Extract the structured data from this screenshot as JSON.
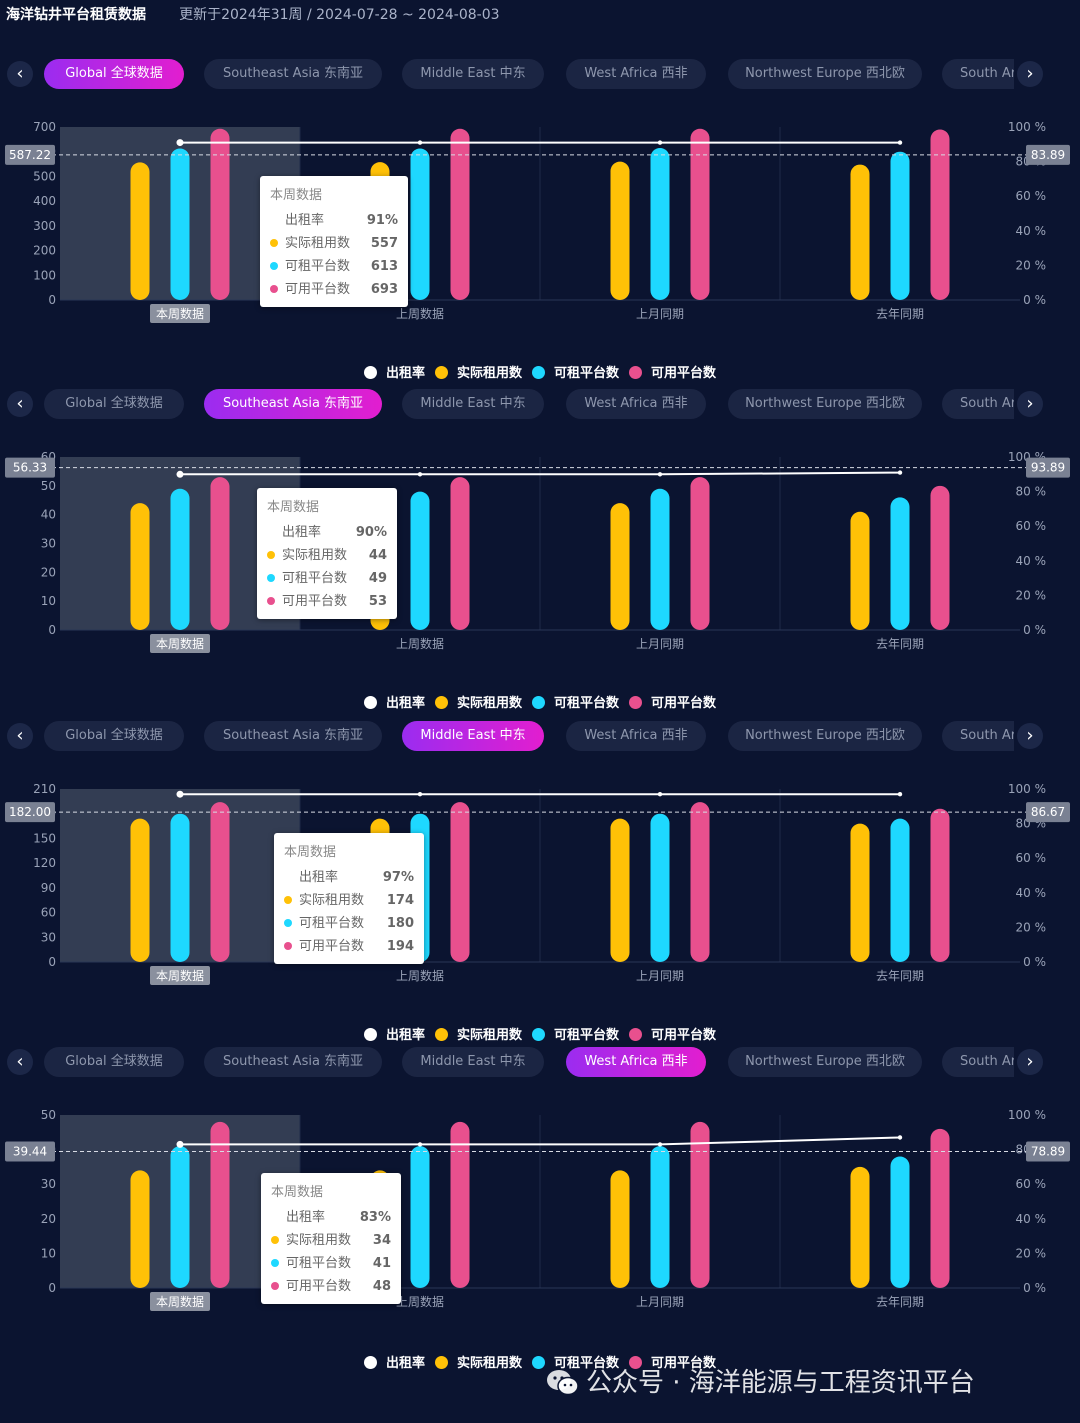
{
  "header": {
    "title": "海洋钻井平台租赁数据",
    "update_text": "更新于2024年31周 / 2024-07-28 ~ 2024-08-03"
  },
  "tabs": [
    "Global  全球数据",
    "Southeast Asia  东南亚",
    "Middle East  中东",
    "West Africa  西非",
    "Northwest Europe  西北欧",
    "South Ar"
  ],
  "legend": [
    {
      "label": "出租率",
      "color": "#ffffff"
    },
    {
      "label": "实际租用数",
      "color": "#ffc107"
    },
    {
      "label": "可租平台数",
      "color": "#1ed8ff"
    },
    {
      "label": "可用平台数",
      "color": "#e8508e"
    }
  ],
  "colors": {
    "background": "#0b1430",
    "tab_active_start": "#9b2cf0",
    "tab_active_end": "#e21ecf",
    "rented": "#ffc107",
    "rentable": "#1ed8ff",
    "available": "#e8508e",
    "rate_line": "#ffffff"
  },
  "sections": [
    {
      "active_tab": 0,
      "tooltip": {
        "title": "本周数据",
        "rows": [
          {
            "label": "出租率",
            "value": "91%"
          },
          {
            "label": "实际租用数",
            "value": "557",
            "color": "#ffc107"
          },
          {
            "label": "可租平台数",
            "value": "613",
            "color": "#1ed8ff"
          },
          {
            "label": "可用平台数",
            "value": "693",
            "color": "#e8508e"
          }
        ]
      },
      "chart_data": {
        "type": "bar",
        "categories": [
          "本周数据",
          "上周数据",
          "上月同期",
          "去年同期"
        ],
        "y_left": {
          "min": 0,
          "max": 700,
          "ticks": [
            "0",
            "100",
            "200",
            "300",
            "400",
            "500",
            "600",
            "700"
          ]
        },
        "y_right": {
          "min": 0,
          "max": 100,
          "ticks": [
            "0 %",
            "20 %",
            "40 %",
            "60 %",
            "80 %",
            "100 %"
          ]
        },
        "series": [
          {
            "name": "实际租用数",
            "values": [
              557,
              558,
              560,
              548
            ]
          },
          {
            "name": "可租平台数",
            "values": [
              613,
              613,
              615,
              600
            ]
          },
          {
            "name": "可用平台数",
            "values": [
              693,
              693,
              693,
              690
            ]
          },
          {
            "name": "出租率",
            "values": [
              91,
              91,
              91,
              91
            ],
            "axis": "right"
          }
        ],
        "marker_left": "587.22",
        "marker_right": "83.89",
        "highlight_category": 0
      }
    },
    {
      "active_tab": 1,
      "tooltip": {
        "title": "本周数据",
        "rows": [
          {
            "label": "出租率",
            "value": "90%"
          },
          {
            "label": "实际租用数",
            "value": "44",
            "color": "#ffc107"
          },
          {
            "label": "可租平台数",
            "value": "49",
            "color": "#1ed8ff"
          },
          {
            "label": "可用平台数",
            "value": "53",
            "color": "#e8508e"
          }
        ]
      },
      "chart_data": {
        "type": "bar",
        "categories": [
          "本周数据",
          "上周数据",
          "上月同期",
          "去年同期"
        ],
        "y_left": {
          "min": 0,
          "max": 60,
          "ticks": [
            "0",
            "10",
            "20",
            "30",
            "40",
            "50",
            "60"
          ]
        },
        "y_right": {
          "min": 0,
          "max": 100,
          "ticks": [
            "0 %",
            "20 %",
            "40 %",
            "60 %",
            "80 %",
            "100 %"
          ]
        },
        "series": [
          {
            "name": "实际租用数",
            "values": [
              44,
              44,
              44,
              41
            ]
          },
          {
            "name": "可租平台数",
            "values": [
              49,
              48,
              49,
              46
            ]
          },
          {
            "name": "可用平台数",
            "values": [
              53,
              53,
              53,
              50
            ]
          },
          {
            "name": "出租率",
            "values": [
              90,
              90,
              90,
              91
            ],
            "axis": "right"
          }
        ],
        "marker_left": "56.33",
        "marker_right": "93.89",
        "highlight_category": 0
      }
    },
    {
      "active_tab": 2,
      "tooltip": {
        "title": "本周数据",
        "rows": [
          {
            "label": "出租率",
            "value": "97%"
          },
          {
            "label": "实际租用数",
            "value": "174",
            "color": "#ffc107"
          },
          {
            "label": "可租平台数",
            "value": "180",
            "color": "#1ed8ff"
          },
          {
            "label": "可用平台数",
            "value": "194",
            "color": "#e8508e"
          }
        ]
      },
      "chart_data": {
        "type": "bar",
        "categories": [
          "本周数据",
          "上周数据",
          "上月同期",
          "去年同期"
        ],
        "y_left": {
          "min": 0,
          "max": 210,
          "ticks": [
            "0",
            "30",
            "60",
            "90",
            "120",
            "150",
            "180",
            "210"
          ]
        },
        "y_right": {
          "min": 0,
          "max": 100,
          "ticks": [
            "0 %",
            "20 %",
            "40 %",
            "60 %",
            "80 %",
            "100 %"
          ]
        },
        "series": [
          {
            "name": "实际租用数",
            "values": [
              174,
              174,
              174,
              168
            ]
          },
          {
            "name": "可租平台数",
            "values": [
              180,
              180,
              180,
              174
            ]
          },
          {
            "name": "可用平台数",
            "values": [
              194,
              194,
              194,
              186
            ]
          },
          {
            "name": "出租率",
            "values": [
              97,
              97,
              97,
              97
            ],
            "axis": "right"
          }
        ],
        "marker_left": "182.00",
        "marker_right": "86.67",
        "highlight_category": 0
      }
    },
    {
      "active_tab": 3,
      "tooltip": {
        "title": "本周数据",
        "rows": [
          {
            "label": "出租率",
            "value": "83%"
          },
          {
            "label": "实际租用数",
            "value": "34",
            "color": "#ffc107"
          },
          {
            "label": "可租平台数",
            "value": "41",
            "color": "#1ed8ff"
          },
          {
            "label": "可用平台数",
            "value": "48",
            "color": "#e8508e"
          }
        ]
      },
      "chart_data": {
        "type": "bar",
        "categories": [
          "本周数据",
          "上周数据",
          "上月同期",
          "去年同期"
        ],
        "y_left": {
          "min": 0,
          "max": 50,
          "ticks": [
            "0",
            "10",
            "20",
            "30",
            "40",
            "50"
          ]
        },
        "y_right": {
          "min": 0,
          "max": 100,
          "ticks": [
            "0 %",
            "20 %",
            "40 %",
            "60 %",
            "80 %",
            "100 %"
          ]
        },
        "series": [
          {
            "name": "实际租用数",
            "values": [
              34,
              34,
              34,
              35
            ]
          },
          {
            "name": "可租平台数",
            "values": [
              41,
              41,
              41,
              38
            ]
          },
          {
            "name": "可用平台数",
            "values": [
              48,
              48,
              48,
              46
            ]
          },
          {
            "name": "出租率",
            "values": [
              83,
              83,
              83,
              87
            ],
            "axis": "right"
          }
        ],
        "marker_left": "39.44",
        "marker_right": "78.89",
        "highlight_category": 0
      }
    }
  ],
  "watermark": "公众号 · 海洋能源与工程资讯平台"
}
